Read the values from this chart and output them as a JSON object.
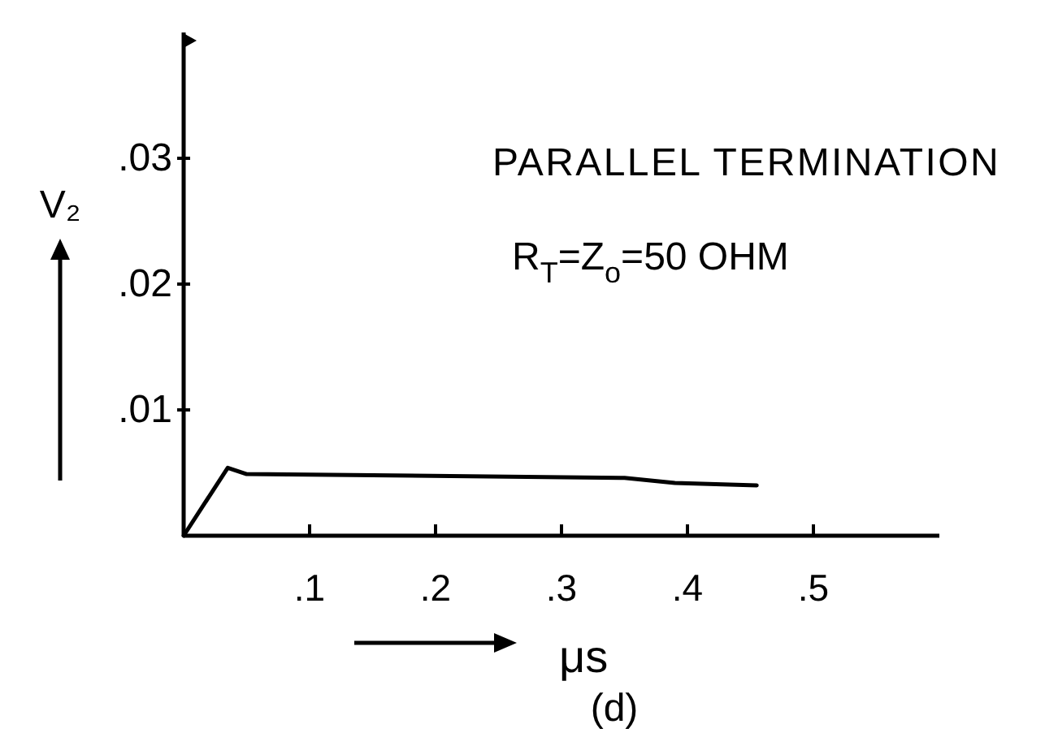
{
  "chart_data": {
    "type": "line",
    "title": "PARALLEL TERMINATION",
    "subtitle": "R$_{T}$=Z$_{o}$=50 OHM",
    "xlabel": "μs",
    "ylabel": "V₂",
    "annotations": [
      "(d)"
    ],
    "series": [
      {
        "x": [
          0,
          0.035,
          0.05,
          0.35,
          0.39,
          0.455
        ],
        "values": [
          0,
          0.0054,
          0.0049,
          0.0046,
          0.0042,
          0.004
        ],
        "color": "#000000"
      }
    ],
    "xlim": [
      0,
      0.6
    ],
    "ylim": [
      0,
      0.04
    ],
    "xticks": [
      {
        "value": 0.1,
        "label": ".1"
      },
      {
        "value": 0.2,
        "label": ".2"
      },
      {
        "value": 0.3,
        "label": ".3"
      },
      {
        "value": 0.4,
        "label": ".4"
      },
      {
        "value": 0.5,
        "label": ".5"
      }
    ],
    "yticks": [
      {
        "value": 0.01,
        "label": ".01"
      },
      {
        "value": 0.02,
        "label": ".02"
      },
      {
        "value": 0.03,
        "label": ".03"
      }
    ],
    "line_style": "solid"
  }
}
